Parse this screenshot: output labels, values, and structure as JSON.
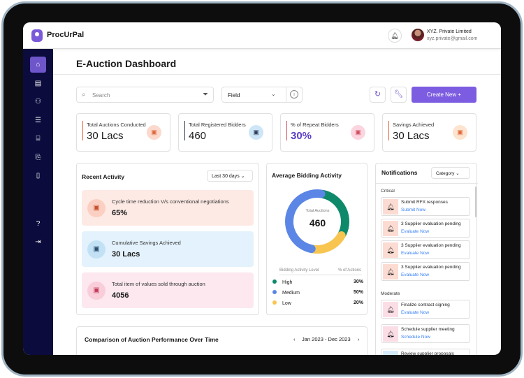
{
  "app": {
    "brand": "ProcUrPal",
    "user_name": "XYZ. Private Limited",
    "user_email": "xyz.private@gmail.com"
  },
  "page": {
    "title": "E-Auction Dashboard"
  },
  "toolbar": {
    "search_placeholder": "Search",
    "field_label": "Field",
    "create_label": "Create New +"
  },
  "cards": [
    {
      "label": "Total Auctions Conducted",
      "value": "30 Lacs",
      "accent": "#e0653a",
      "icon_bg": "#fbd9cc"
    },
    {
      "label": "Total Registered Bidders",
      "value": "460",
      "accent": "#2b3a55",
      "icon_bg": "#cde6f7"
    },
    {
      "label": "% of Repeat Bidders",
      "value": "30%",
      "accent": "#d04a5a",
      "icon_bg": "#fbd5df"
    },
    {
      "label": "Savings Achieved",
      "value": "30 Lacs",
      "accent": "#e0653a",
      "icon_bg": "#fde4cf"
    }
  ],
  "recent": {
    "title": "Recent Activity",
    "range": "Last 30 days",
    "items": [
      {
        "label": "Cycle time reduction V/s conventional negotiations",
        "value": "65%"
      },
      {
        "label": "Cumulative Savings Achieved",
        "value": "30 Lacs"
      },
      {
        "label": "Total item of values sold through auction",
        "value": "4056"
      }
    ]
  },
  "bidding": {
    "title": "Average Bidding Activity",
    "center_label": "Total Auctions",
    "center_value": "460",
    "col1": "Bidding Activity Level",
    "col2": "% of Actions",
    "levels": [
      {
        "label": "High",
        "percent": "30%",
        "value": 30,
        "color": "#0e8a6a"
      },
      {
        "label": "Medium",
        "percent": "50%",
        "value": 50,
        "color": "#5b86e5"
      },
      {
        "label": "Low",
        "percent": "20%",
        "value": 20,
        "color": "#f7c550"
      }
    ]
  },
  "notifications": {
    "title": "Notifications",
    "filter": "Category",
    "critical_label": "Critical",
    "moderate_label": "Moderate",
    "critical": [
      {
        "title": "Submit RFX responses",
        "action": "Submit Now"
      },
      {
        "title": "3 Supplier evaluation pending",
        "action": "Evaluate Now"
      },
      {
        "title": "3 Supplier evaluation pending",
        "action": "Evaluate Now"
      },
      {
        "title": "3 Supplier evaluation pending",
        "action": "Evaluate Now"
      }
    ],
    "moderate": [
      {
        "title": "Finalize contract signing",
        "action": "Evaluate Now"
      },
      {
        "title": "Schedule supplier meeting",
        "action": "Schedule Now"
      },
      {
        "title": "Review supplier proposals",
        "action": ""
      }
    ]
  },
  "comparison": {
    "title": "Comparison of Auction Performance Over Time",
    "range": "Jan 2023 - Dec 2023"
  }
}
